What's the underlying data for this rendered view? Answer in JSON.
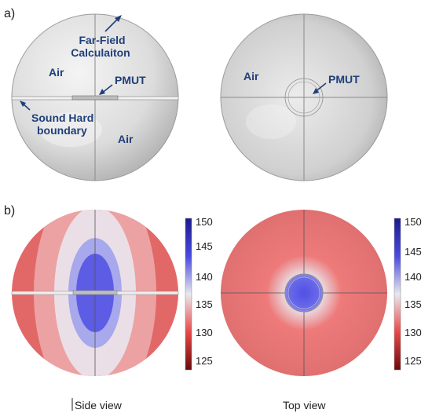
{
  "panel_a": {
    "label": "a)",
    "side": {
      "farfield_line1": "Far-Field",
      "farfield_line2": "Calculaiton",
      "air_top": "Air",
      "pmut": "PMUT",
      "boundary_line1": "Sound Hard",
      "boundary_line2": "boundary",
      "air_bottom": "Air"
    },
    "top": {
      "air": "Air",
      "pmut": "PMUT"
    }
  },
  "panel_b": {
    "label": "b)",
    "colorbar_ticks": [
      "150",
      "145",
      "140",
      "135",
      "130",
      "125"
    ],
    "colors": {
      "max": "#1a1a8c",
      "high": "#4a4ae0",
      "mid": "#e8e8ee",
      "low": "#e84848",
      "min": "#6b0a0a"
    }
  },
  "captions": {
    "side": "Side view",
    "top": "Top view"
  }
}
